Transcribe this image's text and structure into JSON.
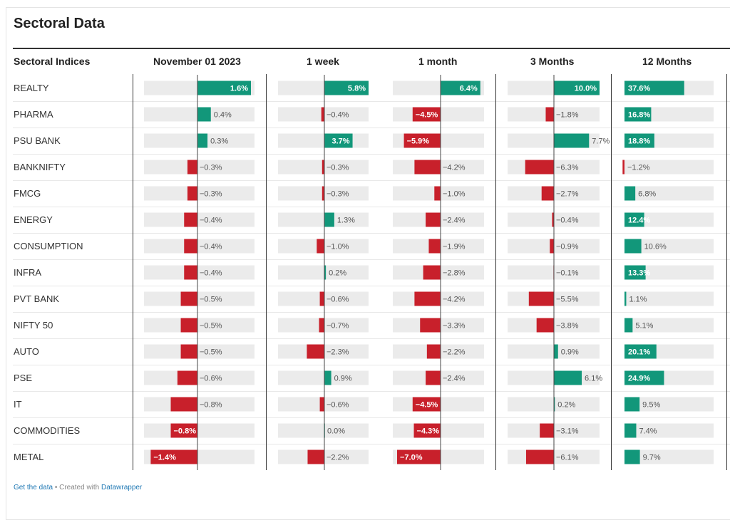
{
  "title": "Sectoral Data",
  "header": {
    "row_label": "Sectoral Indices",
    "columns": [
      "November 01 2023",
      "1 week",
      "1 month",
      "3 Months",
      "12 Months"
    ]
  },
  "footer": {
    "get_data": "Get the data",
    "sep": " • Created with ",
    "datawrapper": "Datawrapper"
  },
  "colors": {
    "positive": "#12977a",
    "negative": "#c8202b",
    "track": "#ebebeb"
  },
  "chart_data": {
    "type": "bar",
    "categories": [
      "REALTY",
      "PHARMA",
      "PSU BANK",
      "BANKNIFTY",
      "FMCG",
      "ENERGY",
      "CONSUMPTION",
      "INFRA",
      "PVT BANK",
      "NIFTY 50",
      "AUTO",
      "PSE",
      "IT",
      "COMMODITIES",
      "METAL"
    ],
    "series": [
      {
        "name": "November 01 2023",
        "values": [
          1.6,
          0.4,
          0.3,
          -0.3,
          -0.3,
          -0.4,
          -0.4,
          -0.4,
          -0.5,
          -0.5,
          -0.5,
          -0.6,
          -0.8,
          -0.8,
          -1.4
        ]
      },
      {
        "name": "1 week",
        "values": [
          5.8,
          -0.4,
          3.7,
          -0.3,
          -0.3,
          1.3,
          -1.0,
          0.2,
          -0.6,
          -0.7,
          -2.3,
          0.9,
          -0.6,
          0.0,
          -2.2
        ]
      },
      {
        "name": "1 month",
        "values": [
          6.4,
          -4.5,
          -5.9,
          -4.2,
          -1.0,
          -2.4,
          -1.9,
          -2.8,
          -4.2,
          -3.3,
          -2.2,
          -2.4,
          -4.5,
          -4.3,
          -7.0
        ]
      },
      {
        "name": "3 Months",
        "values": [
          10.0,
          -1.8,
          7.7,
          -6.3,
          -2.7,
          -0.4,
          -0.9,
          -0.1,
          -5.5,
          -3.8,
          0.9,
          6.1,
          0.2,
          -3.1,
          -6.1
        ]
      },
      {
        "name": "12 Months",
        "values": [
          37.6,
          16.8,
          18.8,
          -1.2,
          6.8,
          12.4,
          10.6,
          13.3,
          1.1,
          5.1,
          20.1,
          24.9,
          9.5,
          7.4,
          9.7
        ]
      }
    ],
    "value_labels": [
      [
        "1.6%",
        "0.4%",
        "0.3%",
        "−0.3%",
        "−0.3%",
        "−0.4%",
        "−0.4%",
        "−0.4%",
        "−0.5%",
        "−0.5%",
        "−0.5%",
        "−0.6%",
        "−0.8%",
        "−0.8%",
        "−1.4%"
      ],
      [
        "5.8%",
        "−0.4%",
        "3.7%",
        "−0.3%",
        "−0.3%",
        "1.3%",
        "−1.0%",
        "0.2%",
        "−0.6%",
        "−0.7%",
        "−2.3%",
        "0.9%",
        "−0.6%",
        "0.0%",
        "−2.2%"
      ],
      [
        "6.4%",
        "−4.5%",
        "−5.9%",
        "−4.2%",
        "−1.0%",
        "−2.4%",
        "−1.9%",
        "−2.8%",
        "−4.2%",
        "−3.3%",
        "−2.2%",
        "−2.4%",
        "−4.5%",
        "−4.3%",
        "−7.0%"
      ],
      [
        "10.0%",
        "−1.8%",
        "7.7%",
        "−6.3%",
        "−2.7%",
        "−0.4%",
        "−0.9%",
        "−0.1%",
        "−5.5%",
        "−3.8%",
        "0.9%",
        "6.1%",
        "0.2%",
        "−3.1%",
        "−6.1%"
      ],
      [
        "37.6%",
        "16.8%",
        "18.8%",
        "−1.2%",
        "6.8%",
        "12.4%",
        "10.6%",
        "13.3%",
        "1.1%",
        "5.1%",
        "20.1%",
        "24.9%",
        "9.5%",
        "7.4%",
        "9.7%"
      ]
    ],
    "label_placement": [
      [
        "in",
        "out",
        "out",
        "out",
        "out",
        "out",
        "out",
        "out",
        "out",
        "out",
        "out",
        "out",
        "out",
        "in",
        "in"
      ],
      [
        "in",
        "out",
        "in",
        "out",
        "out",
        "out",
        "out",
        "out",
        "out",
        "out",
        "out",
        "out",
        "out",
        "out",
        "out"
      ],
      [
        "in",
        "in",
        "in",
        "out",
        "out",
        "out",
        "out",
        "out",
        "out",
        "out",
        "out",
        "out",
        "in",
        "in",
        "in"
      ],
      [
        "in",
        "out",
        "out",
        "out",
        "out",
        "out",
        "out",
        "out",
        "out",
        "out",
        "out",
        "out",
        "out",
        "out",
        "out"
      ],
      [
        "in",
        "in",
        "in",
        "out",
        "out",
        "in",
        "out",
        "in",
        "out",
        "out",
        "in",
        "in",
        "out",
        "out",
        "out"
      ]
    ]
  }
}
